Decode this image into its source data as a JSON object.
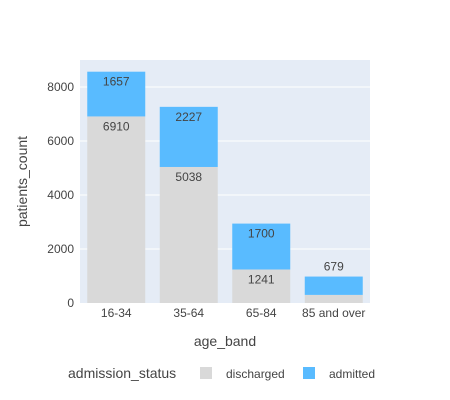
{
  "chart_data": {
    "type": "bar",
    "barmode": "stack",
    "categories": [
      "16-34",
      "35-64",
      "65-84",
      "85 and over"
    ],
    "series": [
      {
        "name": "discharged",
        "color": "#d9d9d9",
        "values": [
          6910,
          5038,
          1241,
          300
        ],
        "labels": [
          "6910",
          "5038",
          "1241",
          ""
        ]
      },
      {
        "name": "admitted",
        "color": "#59bbff",
        "values": [
          1657,
          2227,
          1700,
          679
        ],
        "labels": [
          "1657",
          "2227",
          "1700",
          "679"
        ]
      }
    ],
    "xlabel": "age_band",
    "ylabel": "patients_count",
    "ylim": [
      0,
      9000
    ],
    "yticks": [
      0,
      2000,
      4000,
      6000,
      8000
    ],
    "grid": true,
    "plot_bg": "#e5ecf6",
    "legend": {
      "title": "admission_status",
      "position": "bottom"
    }
  }
}
